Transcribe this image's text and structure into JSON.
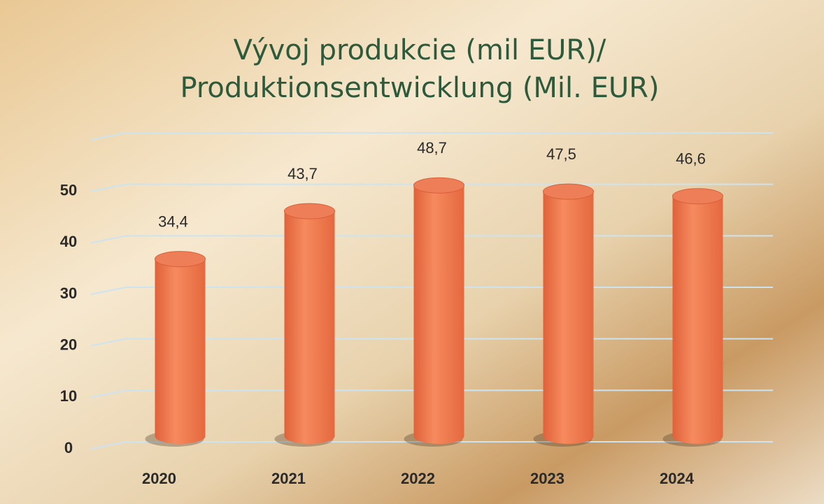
{
  "chart_data": {
    "type": "bar",
    "style": "cylinder",
    "title": [
      "Vývoj produkcie (mil EUR)/",
      "Produktionsentwicklung (Mil. EUR)"
    ],
    "categories": [
      "2020",
      "2021",
      "2022",
      "2023",
      "2024"
    ],
    "values": [
      34.4,
      43.7,
      48.7,
      47.5,
      46.6
    ],
    "value_labels": [
      "34,4",
      "43,7",
      "48,7",
      "47,5",
      "46,6"
    ],
    "color": "#f07a4e",
    "ylim": [
      0,
      60
    ],
    "yticks": [
      0,
      10,
      20,
      30,
      40,
      50
    ],
    "grid": true
  }
}
